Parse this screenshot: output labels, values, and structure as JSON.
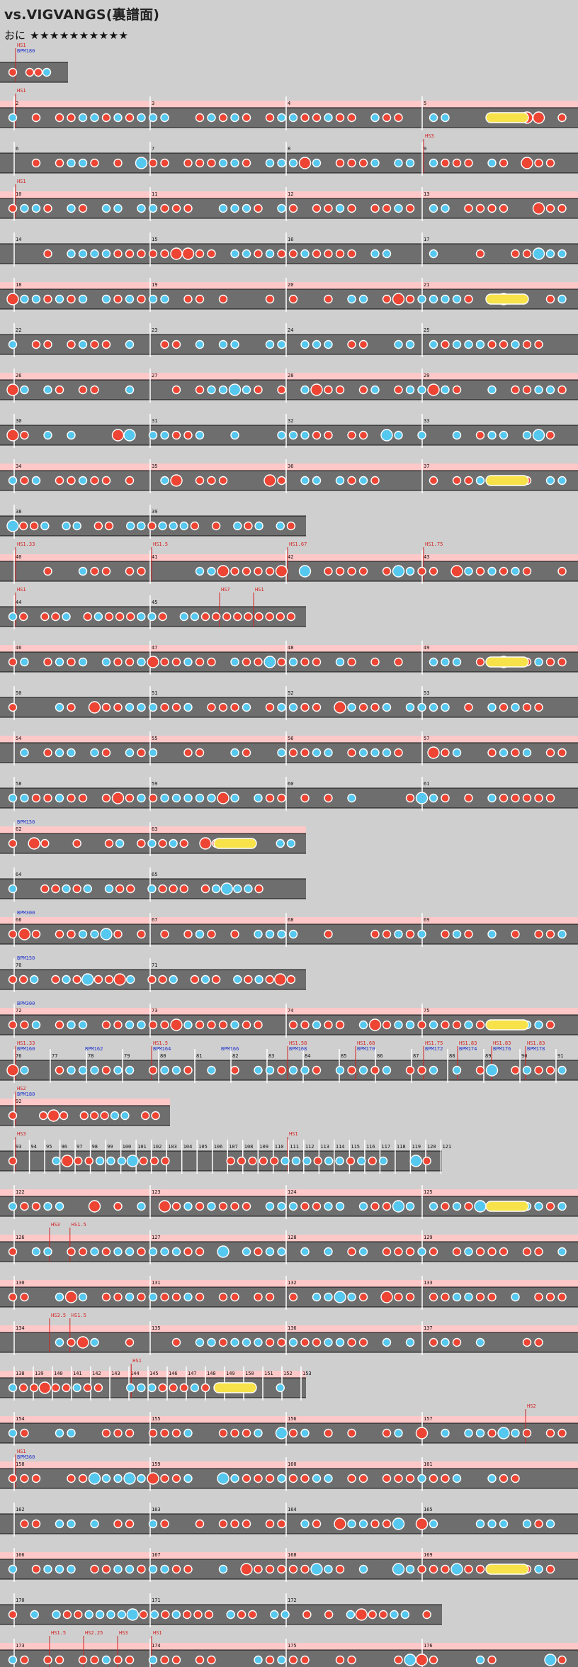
{
  "header": {
    "title": "vs.VIGVANGS(裏譜面)",
    "difficulty_label": "おに",
    "difficulty_stars": "★★★★★★★★★★"
  },
  "colors": {
    "background": "#cfcfcf",
    "lane": "#6e6e6e",
    "gogo_band": "#ffc8c8",
    "don": "#ee4433",
    "ka": "#55c8f0",
    "drumroll": "#f7e24a",
    "scroll_marker": "#d42020",
    "bpm_marker": "#2233cc"
  },
  "rows": [
    {
      "markers": [
        {
          "m": 0,
          "t": "HS1",
          "c": "r"
        },
        {
          "m": 0,
          "t": "BPM180",
          "c": "b"
        }
      ],
      "measures": []
    },
    {
      "markers": [
        {
          "m": 0,
          "t": "HS1",
          "c": "r"
        }
      ],
      "measures": [
        {
          "n": "2"
        },
        {
          "n": "3"
        },
        {
          "n": "4"
        },
        {
          "n": "5"
        }
      ]
    },
    {
      "markers": [
        {
          "m": 3,
          "t": "HS3",
          "c": "r"
        }
      ],
      "measures": [
        {
          "n": "6"
        },
        {
          "n": "7"
        },
        {
          "n": "8"
        },
        {
          "n": "9"
        }
      ]
    },
    {
      "markers": [
        {
          "m": 0,
          "t": "HS1",
          "c": "r"
        }
      ],
      "measures": [
        {
          "n": "10"
        },
        {
          "n": "11"
        },
        {
          "n": "12"
        },
        {
          "n": "13"
        }
      ]
    },
    {
      "markers": [],
      "measures": [
        {
          "n": "14"
        },
        {
          "n": "15"
        },
        {
          "n": "16"
        },
        {
          "n": "17"
        }
      ]
    },
    {
      "markers": [],
      "measures": [
        {
          "n": "18"
        },
        {
          "n": "19"
        },
        {
          "n": "20"
        },
        {
          "n": "21"
        }
      ]
    },
    {
      "markers": [],
      "measures": [
        {
          "n": "22"
        },
        {
          "n": "23"
        },
        {
          "n": "24"
        },
        {
          "n": "25"
        }
      ]
    },
    {
      "markers": [],
      "measures": [
        {
          "n": "26"
        },
        {
          "n": "27"
        },
        {
          "n": "28"
        },
        {
          "n": "29"
        }
      ]
    },
    {
      "markers": [],
      "measures": [
        {
          "n": "30"
        },
        {
          "n": "31"
        },
        {
          "n": "32"
        },
        {
          "n": "33"
        }
      ]
    },
    {
      "markers": [],
      "measures": [
        {
          "n": "34"
        },
        {
          "n": "35"
        },
        {
          "n": "36"
        },
        {
          "n": "37"
        }
      ]
    },
    {
      "markers": [],
      "measures": [
        {
          "n": "38"
        },
        {
          "n": "39"
        }
      ]
    },
    {
      "markers": [
        {
          "m": 0,
          "t": "HS1.33",
          "c": "r"
        },
        {
          "m": 1,
          "t": "HS1.5",
          "c": "r"
        },
        {
          "m": 2,
          "t": "HS1.67",
          "c": "r"
        },
        {
          "m": 3,
          "t": "HS1.75",
          "c": "r"
        }
      ],
      "measures": [
        {
          "n": "40"
        },
        {
          "n": "41"
        },
        {
          "n": "42"
        },
        {
          "n": "43"
        }
      ]
    },
    {
      "markers": [
        {
          "m": 0,
          "t": "HS1",
          "c": "r"
        },
        {
          "m": 1.5,
          "t": "HS7",
          "c": "r"
        },
        {
          "m": 1.75,
          "t": "HS1",
          "c": "r"
        }
      ],
      "measures": [
        {
          "n": "44"
        },
        {
          "n": "45"
        }
      ]
    },
    {
      "markers": [],
      "measures": [
        {
          "n": "46"
        },
        {
          "n": "47"
        },
        {
          "n": "48"
        },
        {
          "n": "49"
        }
      ]
    },
    {
      "markers": [],
      "measures": [
        {
          "n": "50"
        },
        {
          "n": "51"
        },
        {
          "n": "52"
        },
        {
          "n": "53"
        }
      ]
    },
    {
      "markers": [],
      "measures": [
        {
          "n": "54"
        },
        {
          "n": "55"
        },
        {
          "n": "56"
        },
        {
          "n": "57"
        }
      ]
    },
    {
      "markers": [],
      "measures": [
        {
          "n": "58"
        },
        {
          "n": "59"
        },
        {
          "n": "60"
        },
        {
          "n": "61"
        }
      ]
    },
    {
      "markers": [
        {
          "m": 0,
          "t": "BPM150",
          "c": "b"
        }
      ],
      "measures": [
        {
          "n": "62"
        },
        {
          "n": "63"
        }
      ]
    },
    {
      "markers": [],
      "measures": [
        {
          "n": "64"
        },
        {
          "n": "65"
        }
      ]
    },
    {
      "markers": [
        {
          "m": 0,
          "t": "BPM300",
          "c": "b"
        }
      ],
      "measures": [
        {
          "n": "66"
        },
        {
          "n": "67"
        },
        {
          "n": "68"
        },
        {
          "n": "69"
        }
      ]
    },
    {
      "markers": [
        {
          "m": 0,
          "t": "BPM150",
          "c": "b"
        }
      ],
      "measures": [
        {
          "n": "70"
        },
        {
          "n": "71"
        }
      ]
    },
    {
      "markers": [
        {
          "m": 0,
          "t": "BPM300",
          "c": "b"
        }
      ],
      "measures": [
        {
          "n": "72"
        },
        {
          "n": "73"
        },
        {
          "n": "74"
        },
        {
          "n": "75"
        }
      ]
    },
    {
      "markers": [
        {
          "m": 0,
          "t": "HS1.33",
          "c": "r"
        },
        {
          "m": 0,
          "t": "BPM160",
          "c": "b"
        },
        {
          "m": 0.5,
          "t": "BPM162",
          "c": "b"
        },
        {
          "m": 1,
          "t": "HS1.5",
          "c": "r"
        },
        {
          "m": 1,
          "t": "BPM164",
          "c": "b"
        },
        {
          "m": 1.5,
          "t": "BPM166",
          "c": "b"
        },
        {
          "m": 2,
          "t": "HS1.58",
          "c": "r"
        },
        {
          "m": 2,
          "t": "BPM168",
          "c": "b"
        },
        {
          "m": 2.5,
          "t": "HS1.68",
          "c": "r"
        },
        {
          "m": 2.5,
          "t": "BPM170",
          "c": "b"
        },
        {
          "m": 3,
          "t": "HS1.75",
          "c": "r"
        },
        {
          "m": 3,
          "t": "BPM172",
          "c": "b"
        },
        {
          "m": 3.25,
          "t": "HS1.83",
          "c": "r"
        },
        {
          "m": 3.25,
          "t": "BPM174",
          "c": "b"
        },
        {
          "m": 3.5,
          "t": "HS1.83",
          "c": "r"
        },
        {
          "m": 3.5,
          "t": "BPM176",
          "c": "b"
        },
        {
          "m": 3.75,
          "t": "HS1.83",
          "c": "r"
        },
        {
          "m": 3.75,
          "t": "BPM178",
          "c": "b"
        }
      ],
      "measures": [
        {
          "n": "76"
        },
        {
          "n": "77"
        },
        {
          "n": "78"
        },
        {
          "n": "79"
        },
        {
          "n": "80"
        },
        {
          "n": "81"
        },
        {
          "n": "82"
        },
        {
          "n": "83"
        },
        {
          "n": "84"
        },
        {
          "n": "85"
        },
        {
          "n": "86"
        },
        {
          "n": "87"
        },
        {
          "n": "88"
        },
        {
          "n": "89"
        },
        {
          "n": "90"
        },
        {
          "n": "91"
        }
      ]
    },
    {
      "markers": [
        {
          "m": 0,
          "t": "HS2",
          "c": "r"
        },
        {
          "m": 0,
          "t": "BPM180",
          "c": "b"
        }
      ],
      "measures": [
        {
          "n": "92"
        }
      ]
    },
    {
      "markers": [
        {
          "m": 0,
          "t": "HS3",
          "c": "r"
        },
        {
          "m": 2,
          "t": "HS1",
          "c": "r"
        }
      ],
      "measures": [
        {
          "n": "93"
        },
        {
          "n": "94"
        },
        {
          "n": "95"
        },
        {
          "n": "96"
        },
        {
          "n": "97"
        },
        {
          "n": "98"
        },
        {
          "n": "99"
        },
        {
          "n": "100"
        },
        {
          "n": "101"
        },
        {
          "n": "102"
        },
        {
          "n": "103"
        },
        {
          "n": "104"
        },
        {
          "n": "105"
        },
        {
          "n": "106"
        },
        {
          "n": "107"
        },
        {
          "n": "108"
        },
        {
          "n": "109"
        },
        {
          "n": "110"
        },
        {
          "n": "111"
        },
        {
          "n": "112"
        },
        {
          "n": "113"
        },
        {
          "n": "114"
        },
        {
          "n": "115"
        },
        {
          "n": "116"
        },
        {
          "n": "117"
        },
        {
          "n": "118"
        },
        {
          "n": "119"
        },
        {
          "n": "120"
        },
        {
          "n": "121"
        }
      ]
    },
    {
      "markers": [],
      "measures": [
        {
          "n": "122"
        },
        {
          "n": "123"
        },
        {
          "n": "124"
        },
        {
          "n": "125"
        }
      ]
    },
    {
      "markers": [
        {
          "m": 0.25,
          "t": "HS3",
          "c": "r"
        },
        {
          "m": 0.4,
          "t": "HS1.5",
          "c": "r"
        }
      ],
      "measures": [
        {
          "n": "126"
        },
        {
          "n": "127"
        },
        {
          "n": "128"
        },
        {
          "n": "129"
        }
      ]
    },
    {
      "markers": [],
      "measures": [
        {
          "n": "130"
        },
        {
          "n": "131"
        },
        {
          "n": "132"
        },
        {
          "n": "133"
        }
      ]
    },
    {
      "markers": [
        {
          "m": 0.25,
          "t": "HS3.5",
          "c": "r"
        },
        {
          "m": 0.4,
          "t": "HS1.5",
          "c": "r"
        }
      ],
      "measures": [
        {
          "n": "134"
        },
        {
          "n": "135"
        },
        {
          "n": "136"
        },
        {
          "n": "137"
        }
      ]
    },
    {
      "markers": [
        {
          "m": 0.85,
          "t": "HS1",
          "c": "r"
        }
      ],
      "measures": [
        {
          "n": "138"
        },
        {
          "n": "139"
        },
        {
          "n": "140"
        },
        {
          "n": "141"
        },
        {
          "n": "142"
        },
        {
          "n": "143"
        },
        {
          "n": "144"
        },
        {
          "n": "145"
        },
        {
          "n": "146"
        },
        {
          "n": "147"
        },
        {
          "n": "148"
        },
        {
          "n": "149"
        },
        {
          "n": "150"
        },
        {
          "n": "151"
        },
        {
          "n": "152"
        },
        {
          "n": "153"
        }
      ]
    },
    {
      "markers": [
        {
          "m": 3.75,
          "t": "HS2",
          "c": "r"
        }
      ],
      "measures": [
        {
          "n": "154"
        },
        {
          "n": "155"
        },
        {
          "n": "156"
        },
        {
          "n": "157"
        }
      ]
    },
    {
      "markers": [
        {
          "m": 0,
          "t": "HS1",
          "c": "r"
        },
        {
          "m": 0,
          "t": "BPM360",
          "c": "b"
        }
      ],
      "measures": [
        {
          "n": "158"
        },
        {
          "n": "159"
        },
        {
          "n": "160"
        },
        {
          "n": "161"
        }
      ]
    },
    {
      "markers": [],
      "measures": [
        {
          "n": "162"
        },
        {
          "n": "163"
        },
        {
          "n": "164"
        },
        {
          "n": "165"
        }
      ]
    },
    {
      "markers": [],
      "measures": [
        {
          "n": "166"
        },
        {
          "n": "167"
        },
        {
          "n": "168"
        },
        {
          "n": "169"
        }
      ]
    },
    {
      "markers": [],
      "measures": [
        {
          "n": "170"
        },
        {
          "n": "171"
        },
        {
          "n": "172"
        }
      ]
    },
    {
      "markers": [
        {
          "m": 0.25,
          "t": "HS1.5",
          "c": "r"
        },
        {
          "m": 0.5,
          "t": "HS2.25",
          "c": "r"
        },
        {
          "m": 0.75,
          "t": "HS3",
          "c": "r"
        },
        {
          "m": 1,
          "t": "HS1",
          "c": "r"
        }
      ],
      "measures": [
        {
          "n": "173"
        },
        {
          "n": "174"
        },
        {
          "n": "175"
        },
        {
          "n": "176"
        }
      ]
    }
  ]
}
